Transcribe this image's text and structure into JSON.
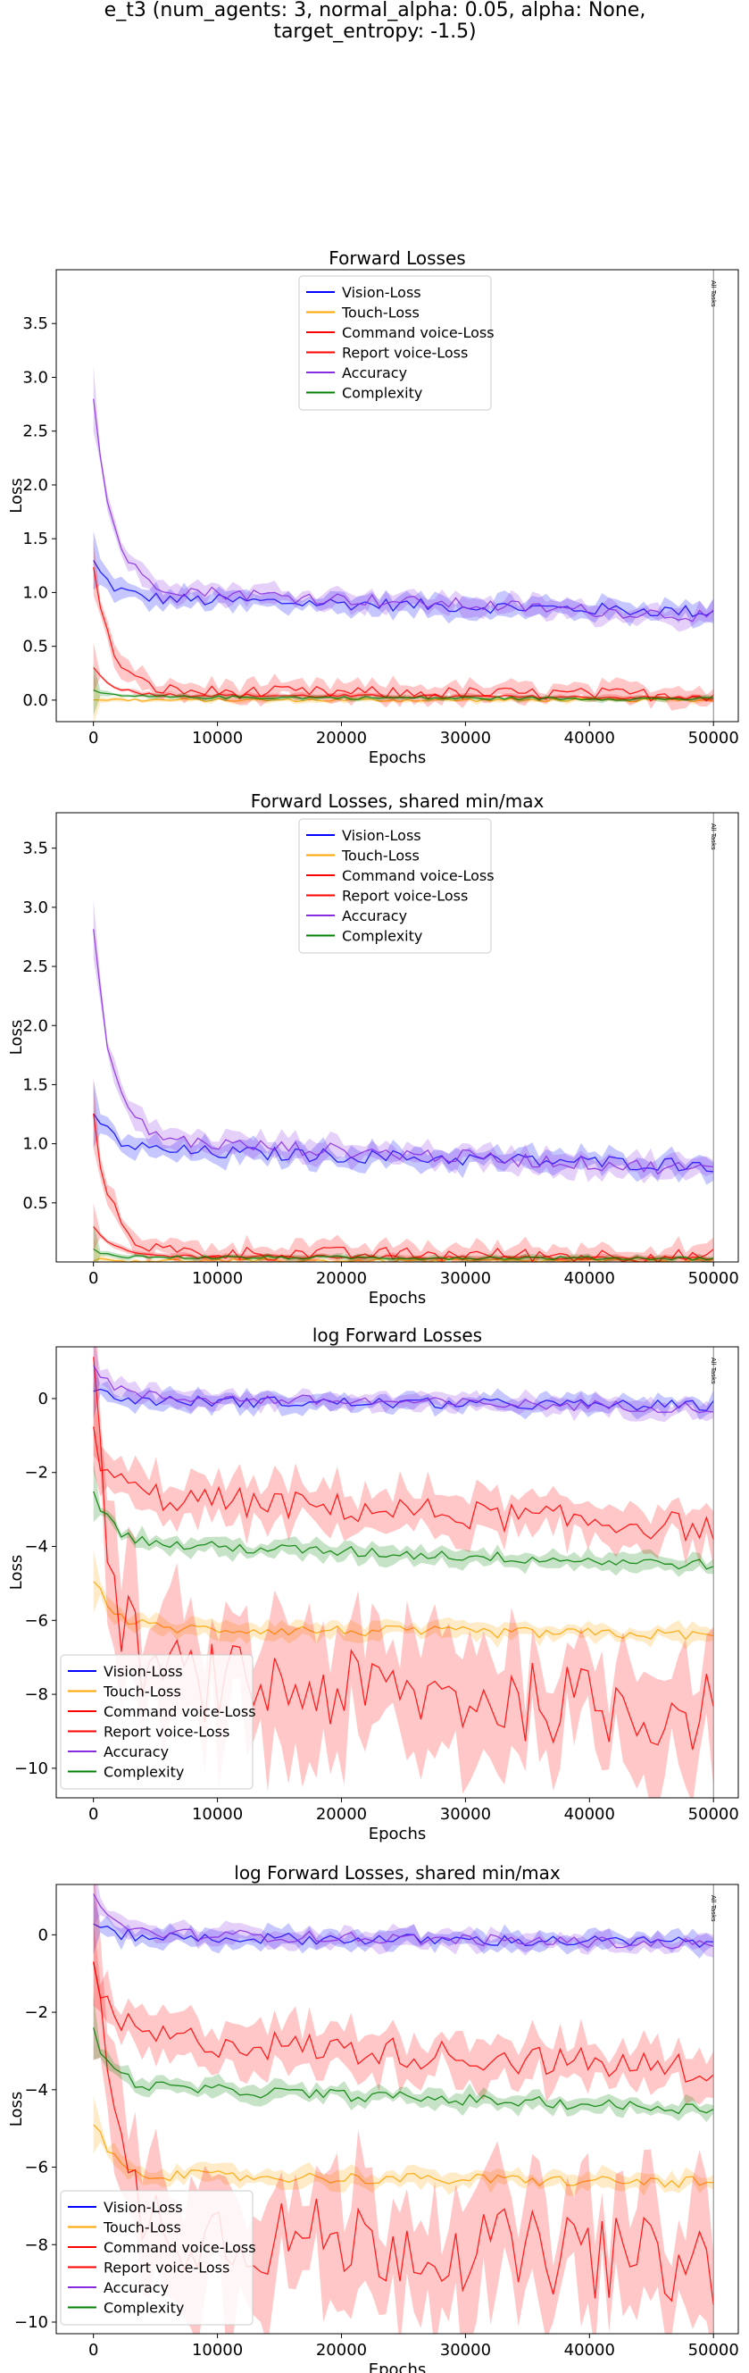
{
  "suptitle_line1": "e_t3 (num_agents: 3, normal_alpha: 0.05, alpha: None,",
  "suptitle_line2": "target_entropy: -1.5)",
  "chart_data": [
    {
      "type": "line",
      "title": "Forward Losses",
      "xlabel": "Epochs",
      "ylabel": "Loss",
      "xlim": [
        -3000,
        52000
      ],
      "ylim": [
        -0.2,
        4.0
      ],
      "xticks": [
        0,
        10000,
        20000,
        30000,
        40000,
        50000
      ],
      "yticks": [
        0.0,
        0.5,
        1.0,
        1.5,
        2.0,
        2.5,
        3.0,
        3.5
      ],
      "tick_labels_y": [
        "0.0",
        "0.5",
        "1.0",
        "1.5",
        "2.0",
        "2.5",
        "3.0",
        "3.5"
      ],
      "tick_labels_x": [
        "0",
        "10000",
        "20000",
        "30000",
        "40000",
        "50000"
      ],
      "annotation": {
        "x": 50000,
        "text": "All Tasks"
      },
      "legend_position": "upper-center",
      "grid": false,
      "series": [
        {
          "name": "Vision-Loss",
          "color": "#0000ff",
          "start": 1.28,
          "mid": 0.95,
          "end": 0.82
        },
        {
          "name": "Touch-Loss",
          "color": "#ffa500",
          "start": 0.01,
          "mid": 0.0,
          "end": 0.0
        },
        {
          "name": "Command voice-Loss",
          "color": "#ff0000",
          "start": 0.3,
          "mid": 0.05,
          "end": 0.02
        },
        {
          "name": "Report voice-Loss",
          "color": "#ff0000",
          "start": 1.2,
          "mid": 0.08,
          "end": 0.05
        },
        {
          "name": "Accuracy",
          "color": "#8a2be2",
          "start": 2.8,
          "mid": 1.05,
          "end": 0.78
        },
        {
          "name": "Complexity",
          "color": "#008000",
          "start": 0.08,
          "mid": 0.03,
          "end": 0.01
        }
      ]
    },
    {
      "type": "line",
      "title": "Forward Losses, shared min/max",
      "xlabel": "Epochs",
      "ylabel": "Loss",
      "xlim": [
        -3000,
        52000
      ],
      "ylim": [
        0.0,
        3.8
      ],
      "xticks": [
        0,
        10000,
        20000,
        30000,
        40000,
        50000
      ],
      "yticks": [
        0.5,
        1.0,
        1.5,
        2.0,
        2.5,
        3.0,
        3.5
      ],
      "tick_labels_y": [
        "0.5",
        "1.0",
        "1.5",
        "2.0",
        "2.5",
        "3.0",
        "3.5"
      ],
      "tick_labels_x": [
        "0",
        "10000",
        "20000",
        "30000",
        "40000",
        "50000"
      ],
      "annotation": {
        "x": 50000,
        "text": "All Tasks"
      },
      "legend_position": "upper-center",
      "grid": false,
      "series": [
        {
          "name": "Vision-Loss",
          "color": "#0000ff",
          "start": 1.28,
          "mid": 0.95,
          "end": 0.82
        },
        {
          "name": "Touch-Loss",
          "color": "#ffa500",
          "start": 0.02,
          "mid": 0.01,
          "end": 0.01
        },
        {
          "name": "Command voice-Loss",
          "color": "#ff0000",
          "start": 0.3,
          "mid": 0.05,
          "end": 0.03
        },
        {
          "name": "Report voice-Loss",
          "color": "#ff0000",
          "start": 1.2,
          "mid": 0.08,
          "end": 0.05
        },
        {
          "name": "Accuracy",
          "color": "#8a2be2",
          "start": 2.8,
          "mid": 1.05,
          "end": 0.78
        },
        {
          "name": "Complexity",
          "color": "#008000",
          "start": 0.1,
          "mid": 0.04,
          "end": 0.03
        }
      ]
    },
    {
      "type": "line",
      "title": "log Forward Losses",
      "xlabel": "Epochs",
      "ylabel": "Loss",
      "xlim": [
        -3000,
        52000
      ],
      "ylim": [
        -10.8,
        1.4
      ],
      "xticks": [
        0,
        10000,
        20000,
        30000,
        40000,
        50000
      ],
      "yticks": [
        -10,
        -8,
        -6,
        -4,
        -2,
        0
      ],
      "tick_labels_y": [
        "−10",
        "−8",
        "−6",
        "−4",
        "−2",
        "0"
      ],
      "tick_labels_x": [
        "0",
        "10000",
        "20000",
        "30000",
        "40000",
        "50000"
      ],
      "annotation": {
        "x": 50000,
        "text": "All Tasks"
      },
      "legend_position": "lower-left",
      "grid": false,
      "series": [
        {
          "name": "Vision-Loss",
          "color": "#0000ff",
          "start": 0.25,
          "mid": -0.05,
          "end": -0.2
        },
        {
          "name": "Touch-Loss",
          "color": "#ffa500",
          "start": -4.8,
          "mid": -6.2,
          "end": -6.4
        },
        {
          "name": "Command voice-Loss",
          "color": "#ff0000",
          "start": -1.1,
          "mid": -2.6,
          "end": -3.5
        },
        {
          "name": "Report voice-Loss",
          "color": "#ff0000",
          "start": 0.3,
          "mid": -7.5,
          "end": -8.5
        },
        {
          "name": "Accuracy",
          "color": "#8a2be2",
          "start": 1.0,
          "mid": 0.05,
          "end": -0.25
        },
        {
          "name": "Complexity",
          "color": "#008000",
          "start": -2.5,
          "mid": -3.9,
          "end": -4.5
        }
      ]
    },
    {
      "type": "line",
      "title": "log Forward Losses, shared min/max",
      "xlabel": "Epochs",
      "ylabel": "Loss",
      "xlim": [
        -3000,
        52000
      ],
      "ylim": [
        -10.3,
        1.3
      ],
      "xticks": [
        0,
        10000,
        20000,
        30000,
        40000,
        50000
      ],
      "yticks": [
        -10,
        -8,
        -6,
        -4,
        -2,
        0
      ],
      "tick_labels_y": [
        "−10",
        "−8",
        "−6",
        "−4",
        "−2",
        "0"
      ],
      "tick_labels_x": [
        "0",
        "10000",
        "20000",
        "30000",
        "40000",
        "50000"
      ],
      "annotation": {
        "x": 50000,
        "text": "All Tasks"
      },
      "legend_position": "lower-left",
      "grid": false,
      "series": [
        {
          "name": "Vision-Loss",
          "color": "#0000ff",
          "start": 0.25,
          "mid": -0.05,
          "end": -0.2
        },
        {
          "name": "Touch-Loss",
          "color": "#ffa500",
          "start": -4.8,
          "mid": -6.2,
          "end": -6.4
        },
        {
          "name": "Command voice-Loss",
          "color": "#ff0000",
          "start": -1.1,
          "mid": -2.6,
          "end": -3.5
        },
        {
          "name": "Report voice-Loss",
          "color": "#ff0000",
          "start": 0.3,
          "mid": -7.5,
          "end": -8.5
        },
        {
          "name": "Accuracy",
          "color": "#8a2be2",
          "start": 1.0,
          "mid": 0.05,
          "end": -0.25
        },
        {
          "name": "Complexity",
          "color": "#008000",
          "start": -2.5,
          "mid": -3.9,
          "end": -4.5
        }
      ]
    }
  ]
}
